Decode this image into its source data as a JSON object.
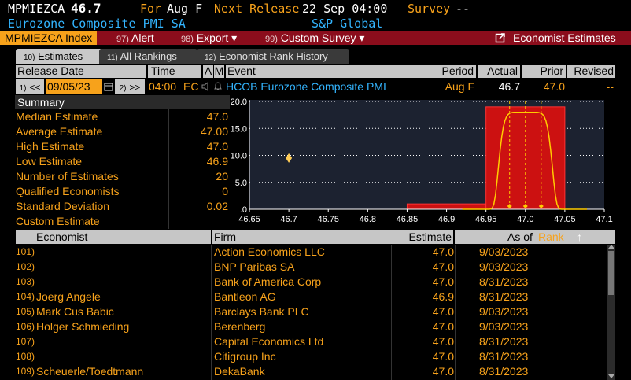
{
  "header": {
    "ticker": "MPMIEZCA",
    "value": "46.7",
    "for_label": "For",
    "for_value": "Aug F",
    "next_release_label": "Next Release",
    "next_release_value": "22 Sep 04:00",
    "survey_label": "Survey",
    "survey_value": "--",
    "name": "Eurozone Composite PMI SA",
    "source": "S&P Global"
  },
  "menubar": {
    "index": "MPMIEZCA Index",
    "alert_num": "97)",
    "alert": "Alert",
    "export_num": "98)",
    "export": "Export ▾",
    "custom_num": "99)",
    "custom": "Custom Survey ▾",
    "economist": "Economist Estimates"
  },
  "tabs": [
    {
      "num": "10)",
      "label": "Estimates"
    },
    {
      "num": "11)",
      "label": "All Rankings"
    },
    {
      "num": "12)",
      "label": "Economist Rank History"
    }
  ],
  "columns": {
    "release_date": "Release Date",
    "time": "Time",
    "a": "A",
    "m": "M",
    "event": "Event",
    "period": "Period",
    "actual": "Actual",
    "prior": "Prior",
    "revised": "Revised"
  },
  "release": {
    "prev_num": "1)",
    "prev": "<<",
    "date": "09/05/23",
    "next_num": "2)",
    "next": ">>",
    "time": "04:00",
    "region": "EC",
    "event": "HCOB Eurozone Composite PMI",
    "period": "Aug F",
    "actual": "46.7",
    "prior": "47.0",
    "revised": "--"
  },
  "summary": {
    "title": "Summary",
    "rows": [
      {
        "label": "Median Estimate",
        "value": "47.0"
      },
      {
        "label": "Average Estimate",
        "value": "47.00"
      },
      {
        "label": "High Estimate",
        "value": "47.0"
      },
      {
        "label": "Low Estimate",
        "value": "46.9"
      },
      {
        "label": "Number of Estimates",
        "value": "20"
      },
      {
        "label": "Qualified Economists",
        "value": "0"
      },
      {
        "label": "Standard Deviation",
        "value": "0.02"
      },
      {
        "label": "Custom Estimate",
        "value": ""
      }
    ]
  },
  "chart_data": {
    "type": "bar",
    "y_ticks": [
      "20.0",
      "15.0",
      "10.0",
      "5.0",
      ".0"
    ],
    "x_ticks": [
      "46.65",
      "46.7",
      "46.75",
      "46.8",
      "46.85",
      "46.9",
      "46.95",
      "47.0",
      "47.05",
      "47.1"
    ],
    "xlim": [
      46.65,
      47.1
    ],
    "ylim": [
      0,
      20
    ],
    "bars": [
      {
        "from": 46.85,
        "to": 46.95,
        "value": 1
      },
      {
        "from": 46.95,
        "to": 47.05,
        "value": 19
      }
    ],
    "actual_marker": {
      "x": 46.7,
      "y": 9.5
    },
    "colors": {
      "bar": "#cc1111",
      "curve": "#ffcc00",
      "marker": "#ffcc55",
      "grid": "#ffffff"
    }
  },
  "table": {
    "headers": {
      "economist": "Economist",
      "firm": "Firm",
      "estimate": "Estimate",
      "as_of": "As of",
      "rank": "Rank",
      "sort": "↑"
    },
    "rows": [
      {
        "num": "101)",
        "economist": "",
        "firm": "Action Economics LLC",
        "estimate": "47.0",
        "as_of": "9/03/2023"
      },
      {
        "num": "102)",
        "economist": "",
        "firm": "BNP Paribas SA",
        "estimate": "47.0",
        "as_of": "9/03/2023"
      },
      {
        "num": "103)",
        "economist": "",
        "firm": "Bank of America Corp",
        "estimate": "47.0",
        "as_of": "8/31/2023"
      },
      {
        "num": "104)",
        "economist": "Joerg Angele",
        "firm": "Bantleon AG",
        "estimate": "46.9",
        "as_of": "8/31/2023"
      },
      {
        "num": "105)",
        "economist": "Mark Cus Babic",
        "firm": "Barclays Bank PLC",
        "estimate": "47.0",
        "as_of": "9/03/2023"
      },
      {
        "num": "106)",
        "economist": "Holger Schmieding",
        "firm": "Berenberg",
        "estimate": "47.0",
        "as_of": "9/03/2023"
      },
      {
        "num": "107)",
        "economist": "",
        "firm": "Capital Economics Ltd",
        "estimate": "47.0",
        "as_of": "8/31/2023"
      },
      {
        "num": "108)",
        "economist": "",
        "firm": "Citigroup Inc",
        "estimate": "47.0",
        "as_of": "8/31/2023"
      },
      {
        "num": "109)",
        "economist": "Scheuerle/Toedtmann",
        "firm": "DekaBank",
        "estimate": "47.0",
        "as_of": "8/31/2023"
      }
    ]
  }
}
